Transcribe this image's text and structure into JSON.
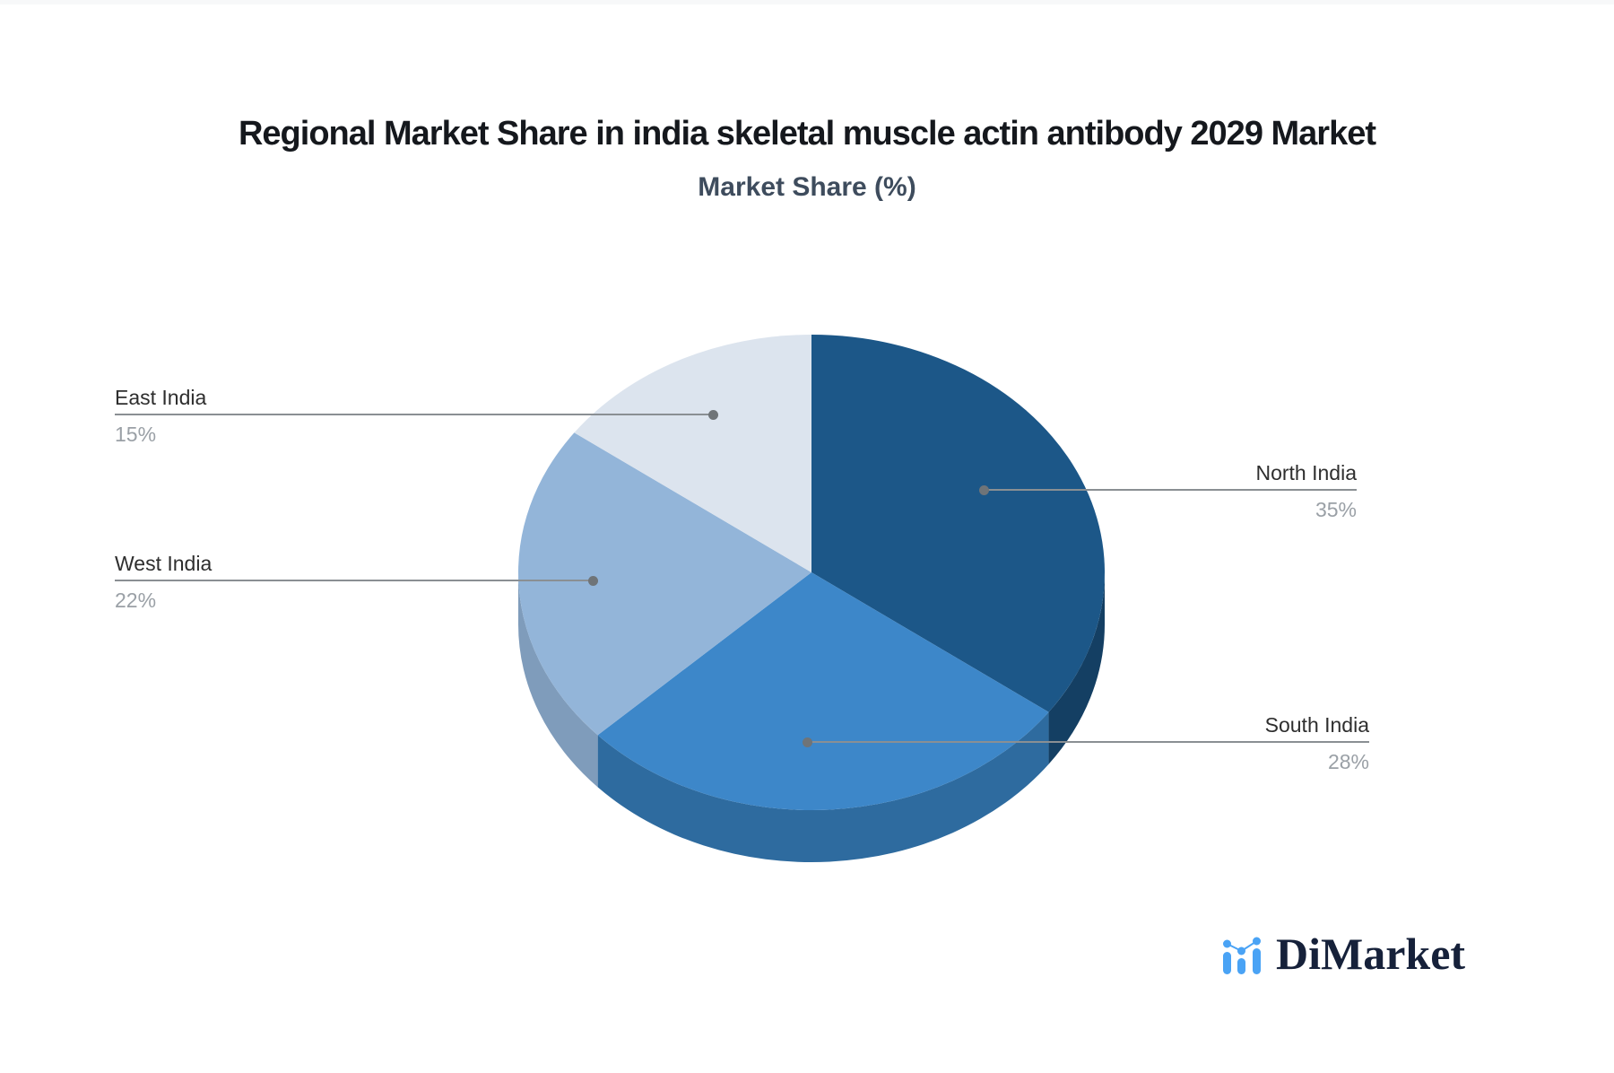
{
  "page": {
    "background_color": "#ffffff",
    "top_strip_color": "#f7f8f9"
  },
  "header": {
    "title": "Regional Market Share in india skeletal muscle actin antibody 2029 Market",
    "subtitle": "Market Share (%)"
  },
  "chart_data": {
    "type": "pie",
    "title": "Regional Market Share in india skeletal muscle actin antibody 2029 Market",
    "subtitle": "Market Share (%)",
    "unit": "%",
    "style": "3d-pie",
    "start_angle_deg": 0,
    "direction": "clockwise",
    "label_style": "callout-leader-lines",
    "slices": [
      {
        "label": "North India",
        "value": 35,
        "value_text": "35%",
        "color": "#1c5788",
        "side_color": "#143f63"
      },
      {
        "label": "South India",
        "value": 28,
        "value_text": "28%",
        "color": "#3d87c9",
        "side_color": "#2e6b9f"
      },
      {
        "label": "West India",
        "value": 22,
        "value_text": "22%",
        "color": "#93b5d9",
        "side_color": "#7f9cbb"
      },
      {
        "label": "East India",
        "value": 15,
        "value_text": "15%",
        "color": "#dce4ee",
        "side_color": "#b9c5d6"
      }
    ],
    "leader_line_color": "#8a8f93",
    "label_color": "#2e2e2e",
    "value_color": "#9aa0a6"
  },
  "branding": {
    "logo_text": "DiMarket",
    "logo_text_color": "#16213a",
    "logo_icon": "bar-chart-with-trend-dots-icon",
    "logo_icon_color": "#4aa3f5"
  }
}
